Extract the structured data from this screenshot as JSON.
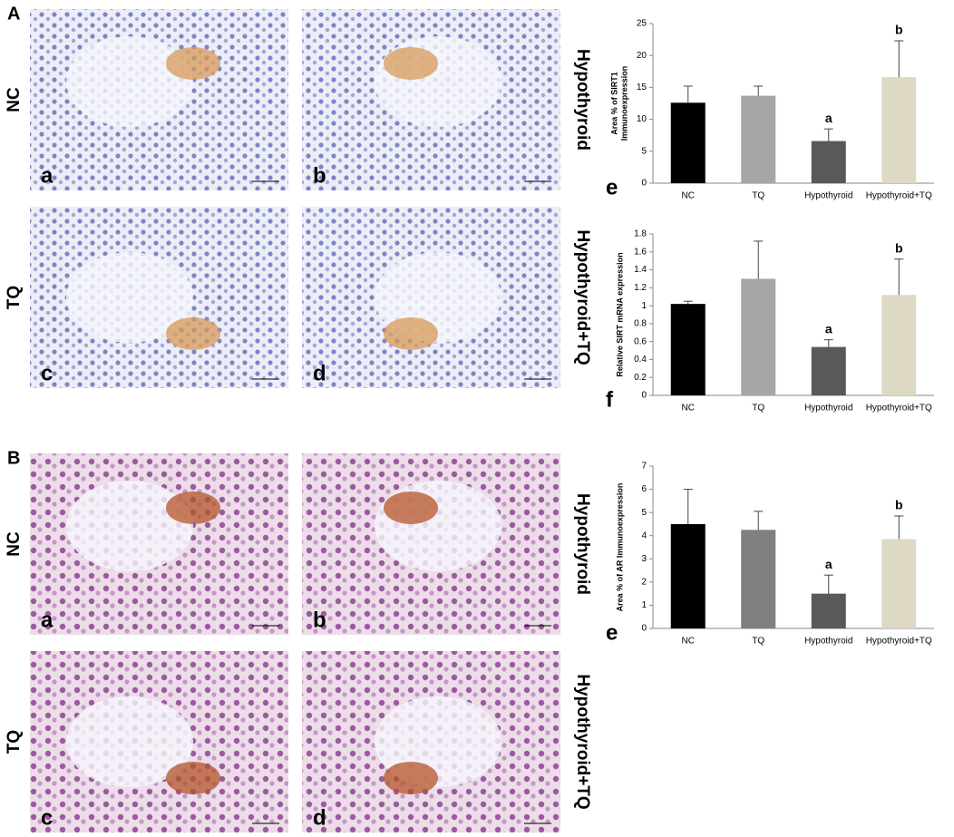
{
  "panels": [
    {
      "letter": "A",
      "rows": [
        "NC",
        "TQ"
      ],
      "right": [
        "Hypothyroid",
        "Hypothyroid+TQ"
      ],
      "images": [
        "a",
        "b",
        "c",
        "d"
      ]
    },
    {
      "letter": "B",
      "rows": [
        "NC",
        "TQ"
      ],
      "right": [
        "Hypothyroid",
        "Hypothyroid+TQ"
      ],
      "images": [
        "a",
        "b",
        "c",
        "d"
      ]
    }
  ],
  "chart_data": [
    {
      "type": "bar",
      "panel_label": "e",
      "ylabel": [
        "Area % of SIRT1",
        "Immunoexpression"
      ],
      "categories": [
        "NC",
        "TQ",
        "Hypothyroid",
        "Hypothyroid+TQ"
      ],
      "values": [
        12.6,
        13.7,
        6.6,
        16.6
      ],
      "errors": [
        2.6,
        1.5,
        1.9,
        5.7
      ],
      "significance": [
        null,
        null,
        "a",
        "b"
      ],
      "colors": [
        "#000000",
        "#a6a6a6",
        "#595959",
        "#ddd9c4"
      ],
      "ylim": [
        0,
        25
      ],
      "yticks": [
        0,
        5,
        10,
        15,
        20,
        25
      ]
    },
    {
      "type": "bar",
      "panel_label": "f",
      "ylabel": [
        "Relative SIRT mRNA expression"
      ],
      "categories": [
        "NC",
        "TQ",
        "Hypothyroid",
        "Hypothyroid+TQ"
      ],
      "values": [
        1.02,
        1.3,
        0.54,
        1.12
      ],
      "errors": [
        0.03,
        0.42,
        0.08,
        0.4
      ],
      "significance": [
        null,
        null,
        "a",
        "b"
      ],
      "colors": [
        "#000000",
        "#a6a6a6",
        "#595959",
        "#ddd9c4"
      ],
      "ylim": [
        0,
        1.8
      ],
      "yticks": [
        0,
        0.2,
        0.4,
        0.6,
        0.8,
        1,
        1.2,
        1.4,
        1.6,
        1.8
      ]
    },
    {
      "type": "bar",
      "panel_label": "e",
      "ylabel": [
        "Area % of AR Immunoexpression"
      ],
      "categories": [
        "NC",
        "TQ",
        "Hypothyroid",
        "Hypothyroid+TQ"
      ],
      "values": [
        4.5,
        4.25,
        1.5,
        3.85
      ],
      "errors": [
        1.5,
        0.8,
        0.8,
        1.0
      ],
      "significance": [
        null,
        null,
        "a",
        "b"
      ],
      "colors": [
        "#000000",
        "#7f7f7f",
        "#595959",
        "#ddd9c4"
      ],
      "ylim": [
        0,
        7
      ],
      "yticks": [
        0,
        1,
        2,
        3,
        4,
        5,
        6,
        7
      ]
    }
  ]
}
